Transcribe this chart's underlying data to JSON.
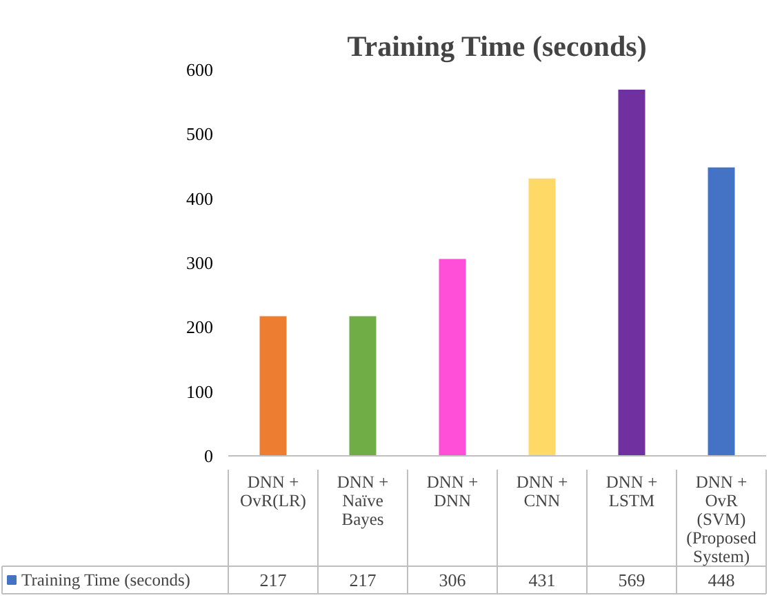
{
  "chart_data": {
    "type": "bar",
    "title": "Training Time (seconds)",
    "categories": [
      "DNN +\nOvR(LR)",
      "DNN +\nNaïve\nBayes",
      "DNN +\nDNN",
      "DNN +\nCNN",
      "DNN +\nLSTM",
      "DNN +\nOvR\n(SVM)\n(Proposed\nSystem)"
    ],
    "series": [
      {
        "name": "Training Time (seconds)",
        "color": "#4472c4",
        "colors": [
          "#ed7d31",
          "#70ad47",
          "#ff4fd8",
          "#ffd966",
          "#7030a0",
          "#4472c4"
        ],
        "values": [
          217,
          217,
          306,
          431,
          569,
          448
        ]
      }
    ],
    "ylim": [
      0,
      600
    ],
    "yticks": [
      0,
      100,
      200,
      300,
      400,
      500,
      600
    ],
    "grid": false,
    "data_labels": true
  }
}
